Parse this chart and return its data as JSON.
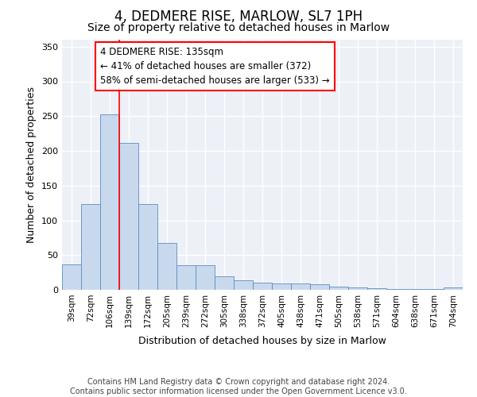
{
  "title": "4, DEDMERE RISE, MARLOW, SL7 1PH",
  "subtitle": "Size of property relative to detached houses in Marlow",
  "xlabel": "Distribution of detached houses by size in Marlow",
  "ylabel": "Number of detached properties",
  "categories": [
    "39sqm",
    "72sqm",
    "106sqm",
    "139sqm",
    "172sqm",
    "205sqm",
    "239sqm",
    "272sqm",
    "305sqm",
    "338sqm",
    "372sqm",
    "405sqm",
    "438sqm",
    "471sqm",
    "505sqm",
    "538sqm",
    "571sqm",
    "604sqm",
    "638sqm",
    "671sqm",
    "704sqm"
  ],
  "values": [
    37,
    123,
    253,
    212,
    124,
    68,
    35,
    35,
    19,
    14,
    10,
    9,
    9,
    8,
    5,
    3,
    2,
    1,
    1,
    1,
    4
  ],
  "bar_color": "#c9d9ed",
  "bar_edge_color": "#5b8dc0",
  "red_line_x": 3.0,
  "annotation_text": "4 DEDMERE RISE: 135sqm\n← 41% of detached houses are smaller (372)\n58% of semi-detached houses are larger (533) →",
  "annotation_box_color": "white",
  "annotation_box_edge_color": "red",
  "ylim": [
    0,
    360
  ],
  "yticks": [
    0,
    50,
    100,
    150,
    200,
    250,
    300,
    350
  ],
  "footer_text": "Contains HM Land Registry data © Crown copyright and database right 2024.\nContains public sector information licensed under the Open Government Licence v3.0.",
  "bg_color": "#edf1f7",
  "grid_color": "white",
  "title_fontsize": 12,
  "subtitle_fontsize": 10,
  "label_fontsize": 9,
  "tick_fontsize": 8,
  "footer_fontsize": 7
}
